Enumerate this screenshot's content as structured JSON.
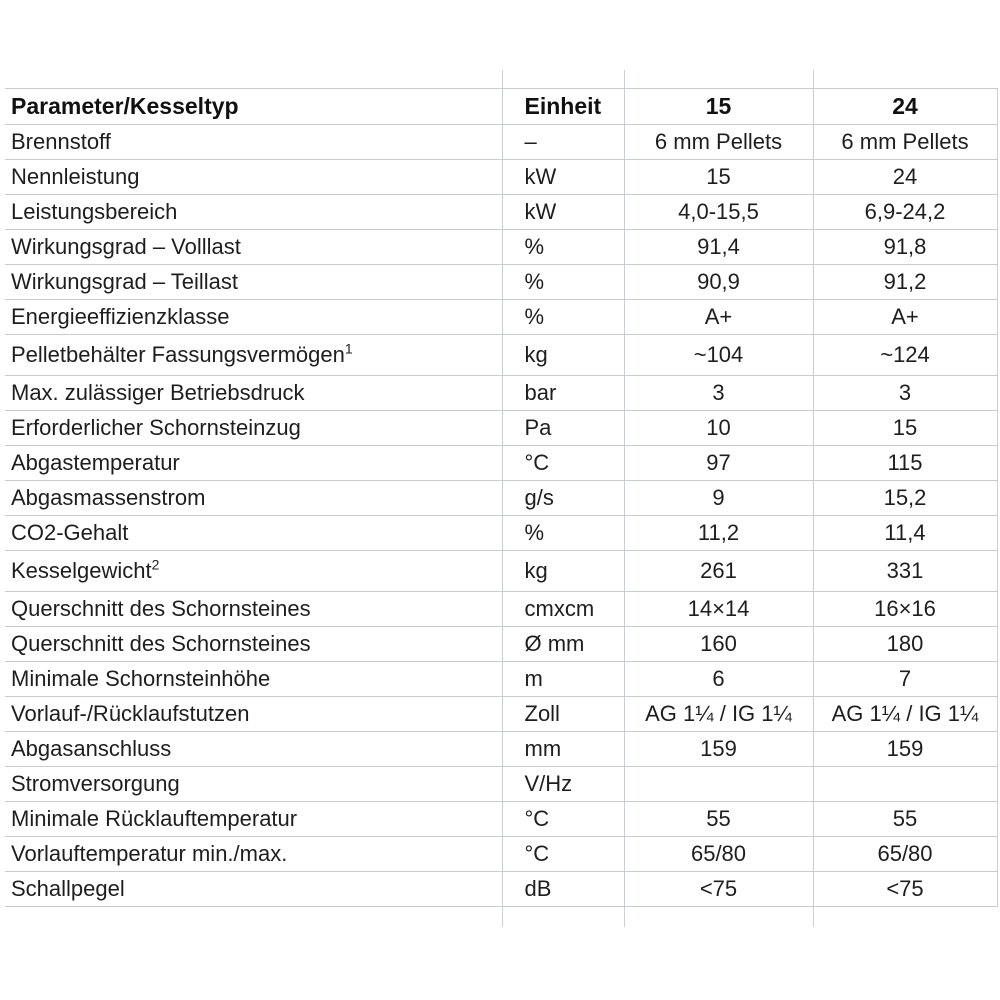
{
  "page": {
    "background_color": "#ffffff",
    "grid_color": "#c9ccd1",
    "text_color": "#1e1e1e"
  },
  "table": {
    "header": {
      "param": "Parameter/Kesseltyp",
      "unit": "Einheit",
      "col1": "15",
      "col2": "24"
    },
    "rows": [
      {
        "param": "Brennstoff",
        "unit": "–",
        "v1": "6 mm Pellets",
        "v2": "6 mm Pellets"
      },
      {
        "param": "Nennleistung",
        "unit": "kW",
        "v1": "15",
        "v2": "24"
      },
      {
        "param": "Leistungsbereich",
        "unit": "kW",
        "v1": "4,0-15,5",
        "v2": "6,9-24,2"
      },
      {
        "param": "Wirkungsgrad – Volllast",
        "unit": "%",
        "v1": "91,4",
        "v2": "91,8"
      },
      {
        "param": "Wirkungsgrad – Teillast",
        "unit": "%",
        "v1": "90,9",
        "v2": "91,2"
      },
      {
        "param": "Energieeffizienzklasse",
        "unit": "%",
        "v1": "A+",
        "v2": "A+"
      },
      {
        "param": "Pelletbehälter Fassungsvermögen",
        "sup": "1",
        "unit": "kg",
        "v1": "~104",
        "v2": "~124"
      },
      {
        "param": "Max. zulässiger Betriebsdruck",
        "unit": "bar",
        "v1": "3",
        "v2": "3"
      },
      {
        "param": "Erforderlicher Schornsteinzug",
        "unit": "Pa",
        "v1": "10",
        "v2": "15"
      },
      {
        "param": "Abgastemperatur",
        "unit": "°C",
        "v1": "97",
        "v2": "115"
      },
      {
        "param": "Abgasmassenstrom",
        "unit": "g/s",
        "v1": "9",
        "v2": "15,2"
      },
      {
        "param": "CO2-Gehalt",
        "unit": "%",
        "v1": "11,2",
        "v2": "11,4"
      },
      {
        "param": "Kesselgewicht",
        "sup": "2",
        "unit": "kg",
        "v1": "261",
        "v2": "331"
      },
      {
        "param": "Querschnitt des Schornsteines",
        "unit": "cmxcm",
        "v1": "14×14",
        "v2": "16×16"
      },
      {
        "param": "Querschnitt des Schornsteines",
        "unit": "Ø mm",
        "v1": "160",
        "v2": "180"
      },
      {
        "param": "Minimale Schornsteinhöhe",
        "unit": "m",
        "v1": "6",
        "v2": "7"
      },
      {
        "param": "Vorlauf-/Rücklaufstutzen",
        "unit": "Zoll",
        "v1": "AG 1¼ / IG 1¼",
        "v2": "AG 1¼ / IG 1¼"
      },
      {
        "param": "Abgasanschluss",
        "unit": "mm",
        "v1": "159",
        "v2": "159"
      },
      {
        "param": "Stromversorgung",
        "unit": "V/Hz",
        "v1": "",
        "v2": ""
      },
      {
        "param": "Minimale Rücklauftemperatur",
        "unit": "°C",
        "v1": "55",
        "v2": "55"
      },
      {
        "param": "Vorlauftemperatur min./max.",
        "unit": "°C",
        "v1": "65/80",
        "v2": "65/80"
      },
      {
        "param": "Schallpegel",
        "unit": "dB",
        "v1": "<75",
        "v2": "<75"
      }
    ]
  }
}
